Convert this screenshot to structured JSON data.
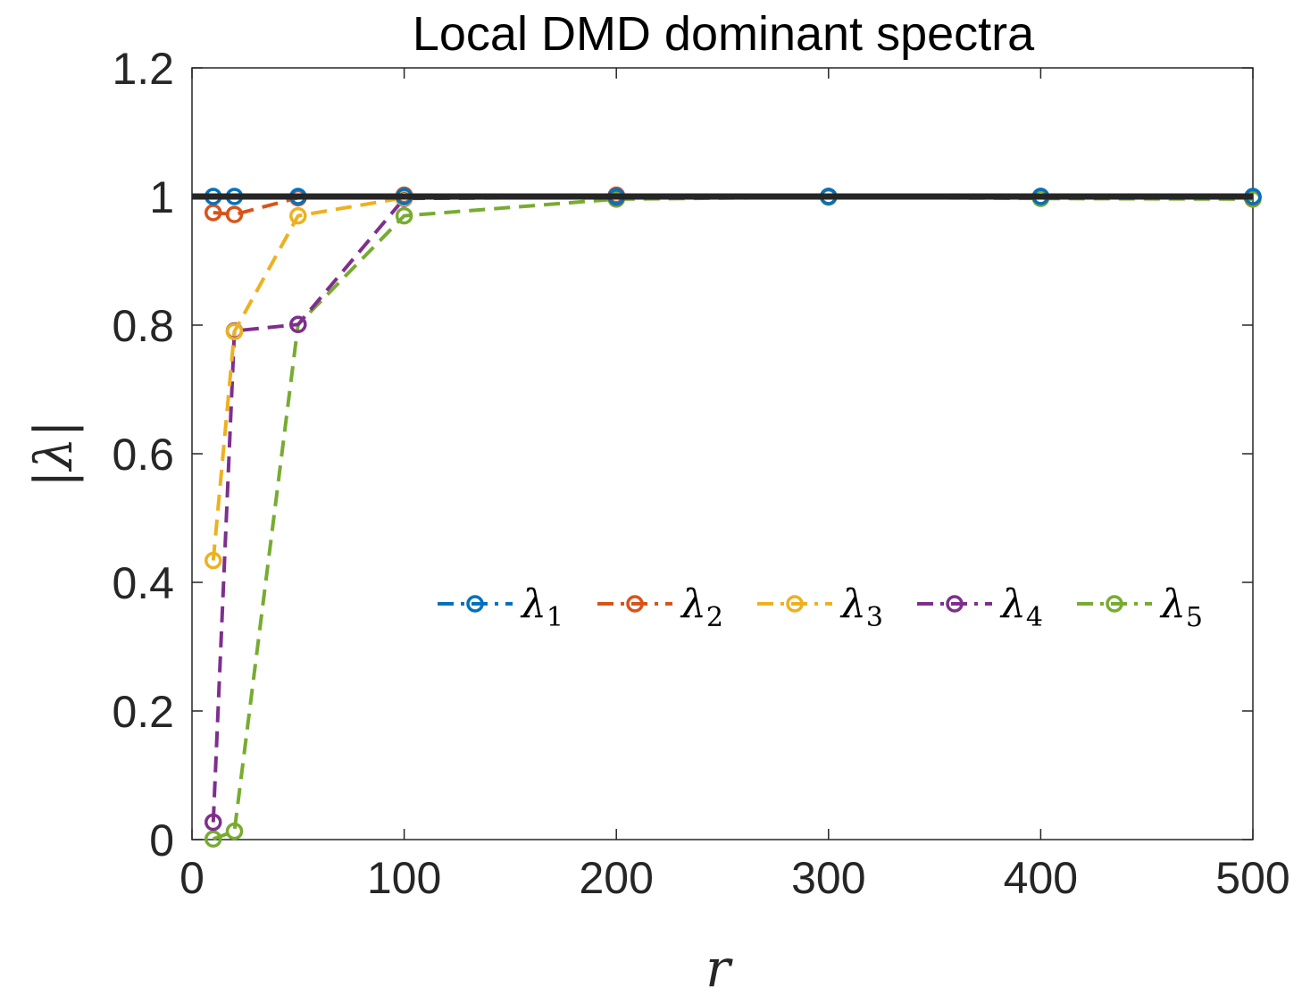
{
  "chart_data": {
    "type": "line",
    "title": "Local DMD dominant spectra",
    "xlabel": "r",
    "ylabel": "|λ|",
    "xlim": [
      0,
      500
    ],
    "ylim": [
      0,
      1.2
    ],
    "xticks": [
      0,
      100,
      200,
      300,
      400,
      500
    ],
    "xtick_labels": [
      "0",
      "100",
      "200",
      "300",
      "400",
      "500"
    ],
    "yticks": [
      0,
      0.2,
      0.4,
      0.6,
      0.8,
      1,
      1.2
    ],
    "ytick_labels": [
      "0",
      "0.2",
      "0.4",
      "0.6",
      "0.8",
      "1",
      "1.2"
    ],
    "grid": false,
    "legend_position": "middle-right, horizontal",
    "reference_line": {
      "y": 1,
      "color": "#262626"
    },
    "series": [
      {
        "name": "λ",
        "subscript": "1",
        "color": "#0072BD",
        "x": [
          10,
          20,
          50,
          100,
          200,
          300,
          400,
          500
        ],
        "y": [
          1.0,
          1.0,
          1.0,
          1.0,
          1.0,
          1.0,
          1.0,
          1.0
        ]
      },
      {
        "name": "λ",
        "subscript": "2",
        "color": "#D95319",
        "x": [
          10,
          20,
          50,
          100,
          200,
          300,
          400,
          500
        ],
        "y": [
          0.975,
          0.972,
          0.998,
          1.002,
          1.002,
          1.0,
          1.0,
          0.999
        ]
      },
      {
        "name": "λ",
        "subscript": "3",
        "color": "#EDB120",
        "x": [
          10,
          20,
          50,
          100,
          200,
          300,
          400,
          500
        ],
        "y": [
          0.434,
          0.79,
          0.97,
          0.998,
          1.0,
          1.0,
          1.0,
          0.999
        ]
      },
      {
        "name": "λ",
        "subscript": "4",
        "color": "#7E2F8E",
        "x": [
          10,
          20,
          50,
          100,
          200,
          300,
          400,
          500
        ],
        "y": [
          0.027,
          0.791,
          0.801,
          0.997,
          0.999,
          1.0,
          1.0,
          0.999
        ]
      },
      {
        "name": "λ",
        "subscript": "5",
        "color": "#77AC30",
        "x": [
          10,
          20,
          50,
          100,
          200,
          300,
          400,
          500
        ],
        "y": [
          0.001,
          0.013,
          0.801,
          0.97,
          0.996,
          0.999,
          0.997,
          0.996
        ]
      }
    ]
  }
}
